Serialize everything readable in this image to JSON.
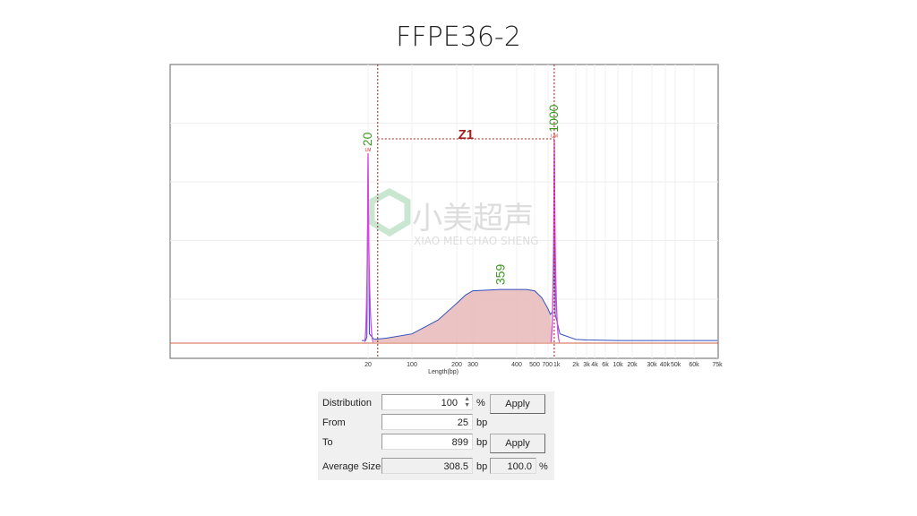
{
  "slide": {
    "title": "FFPE36-2",
    "watermark": "小美超声 XIAO MEI CHAO SHENG"
  },
  "chart_data": {
    "type": "line",
    "title": "FFPE36-2",
    "xlabel": "Length(bp)",
    "ylabel": "",
    "x_scale": "sizing ladder (nonlinear)",
    "x_ticks": [
      "20",
      "100",
      "200",
      "300",
      "400",
      "500",
      "700",
      "1k",
      "2k",
      "3k",
      "4k",
      "6k",
      "10k",
      "20k",
      "30k",
      "40k",
      "50k",
      "60k",
      "75k"
    ],
    "x_tick_values": [
      20,
      100,
      200,
      300,
      400,
      500,
      700,
      1000,
      2000,
      3000,
      4000,
      6000,
      10000,
      20000,
      30000,
      40000,
      50000,
      60000,
      75000
    ],
    "ylim": [
      0,
      100
    ],
    "grid": true,
    "markers": [
      {
        "label": "20",
        "x": 20,
        "y": 68,
        "tag": "LM"
      },
      {
        "label": "1000",
        "x": 1000,
        "y": 73,
        "tag": "UM"
      }
    ],
    "peak_label": {
      "label": "359",
      "x": 359,
      "y": 19
    },
    "region": {
      "label": "Z1",
      "from": 25,
      "to": 899
    },
    "series": [
      {
        "color": "#3050c0",
        "points": [
          [
            15,
            0.6
          ],
          [
            18,
            0.6
          ],
          [
            19,
            2
          ],
          [
            20,
            68
          ],
          [
            21,
            3
          ],
          [
            25,
            1
          ],
          [
            40,
            1.5
          ],
          [
            100,
            3
          ],
          [
            150,
            8
          ],
          [
            200,
            14
          ],
          [
            250,
            17
          ],
          [
            300,
            18.5
          ],
          [
            359,
            19
          ],
          [
            450,
            19
          ],
          [
            500,
            18.5
          ],
          [
            600,
            16
          ],
          [
            700,
            12
          ],
          [
            800,
            10
          ],
          [
            900,
            11
          ],
          [
            980,
            30
          ],
          [
            1000,
            73
          ],
          [
            1030,
            10
          ],
          [
            1200,
            3
          ],
          [
            2000,
            1
          ],
          [
            3000,
            0.8
          ],
          [
            10000,
            0.6
          ],
          [
            75000,
            0.6
          ]
        ]
      }
    ],
    "colors": {
      "trace": "#3050c0",
      "marker_trace": "#e040e0",
      "fill": "#e8b8b8",
      "region": "#a02020",
      "label": "#3a9a20"
    }
  },
  "panel": {
    "distribution_label": "Distribution",
    "distribution_value": "100",
    "distribution_unit": "%",
    "apply1": "Apply",
    "from_label": "From",
    "from_value": "25",
    "from_unit": "bp",
    "to_label": "To",
    "to_value": "899",
    "to_unit": "bp",
    "apply2": "Apply",
    "avg_label": "Average Size",
    "avg_value": "308.5",
    "avg_unit": "bp",
    "pct_value": "100.0",
    "pct_unit": "%"
  }
}
